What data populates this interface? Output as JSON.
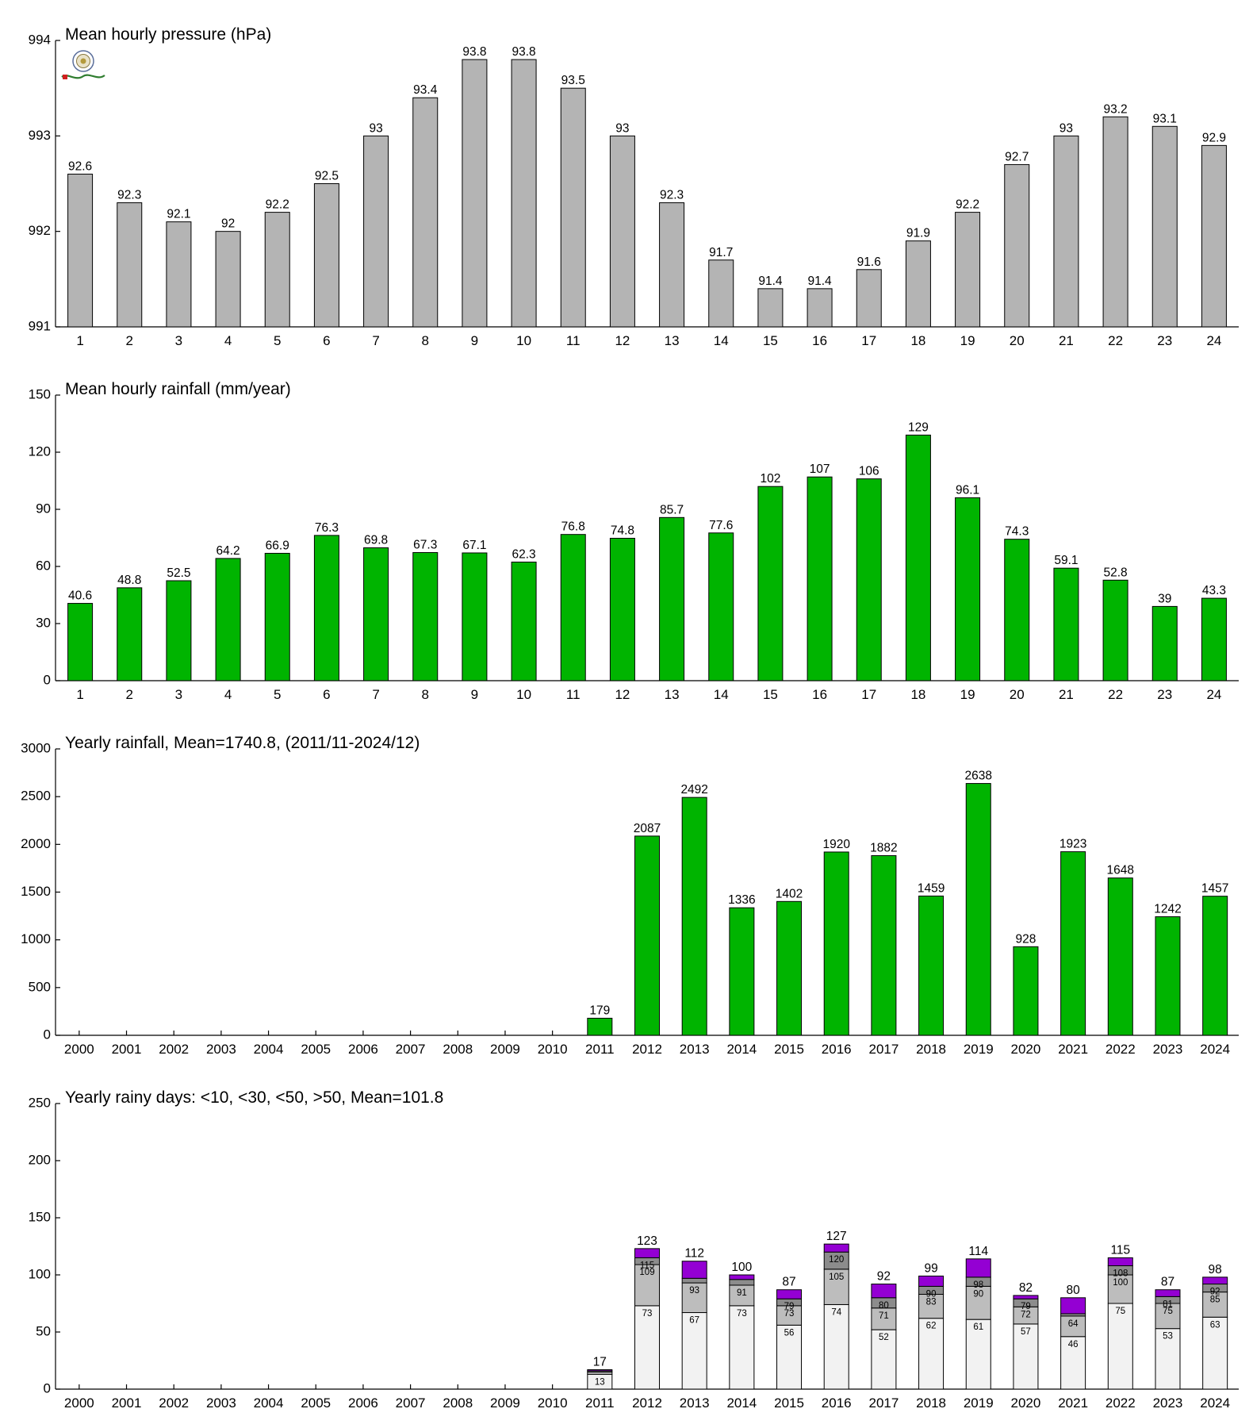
{
  "chart_data": [
    {
      "type": "bar",
      "title": "Mean hourly pressure (hPa)",
      "categories": [
        "1",
        "2",
        "3",
        "4",
        "5",
        "6",
        "7",
        "8",
        "9",
        "10",
        "11",
        "12",
        "13",
        "14",
        "15",
        "16",
        "17",
        "18",
        "19",
        "20",
        "21",
        "22",
        "23",
        "24"
      ],
      "values": [
        992.6,
        992.3,
        992.1,
        992.0,
        992.2,
        992.5,
        993.0,
        993.4,
        993.8,
        993.8,
        993.5,
        993.0,
        992.3,
        991.7,
        991.4,
        991.4,
        991.6,
        991.9,
        992.2,
        992.7,
        993.0,
        993.2,
        993.1,
        992.9
      ],
      "data_labels": [
        "92.6",
        "92.3",
        "92.1",
        "92",
        "92.2",
        "92.5",
        "93",
        "93.4",
        "93.8",
        "93.8",
        "93.5",
        "93",
        "92.3",
        "91.7",
        "91.4",
        "91.4",
        "91.6",
        "91.9",
        "92.2",
        "92.7",
        "93",
        "93.2",
        "93.1",
        "92.9"
      ],
      "ylim": [
        991,
        994
      ],
      "yticks": [
        991,
        992,
        993,
        994
      ],
      "color": "#b4b4b4"
    },
    {
      "type": "bar",
      "title": "Mean hourly rainfall (mm/year)",
      "categories": [
        "1",
        "2",
        "3",
        "4",
        "5",
        "6",
        "7",
        "8",
        "9",
        "10",
        "11",
        "12",
        "13",
        "14",
        "15",
        "16",
        "17",
        "18",
        "19",
        "20",
        "21",
        "22",
        "23",
        "24"
      ],
      "values": [
        40.6,
        48.8,
        52.5,
        64.2,
        66.9,
        76.3,
        69.8,
        67.3,
        67.1,
        62.3,
        76.8,
        74.8,
        85.7,
        77.6,
        102,
        107,
        106,
        129,
        96.1,
        74.3,
        59.1,
        52.8,
        39,
        43.3
      ],
      "data_labels": [
        "40.6",
        "48.8",
        "52.5",
        "64.2",
        "66.9",
        "76.3",
        "69.8",
        "67.3",
        "67.1",
        "62.3",
        "76.8",
        "74.8",
        "85.7",
        "77.6",
        "102",
        "107",
        "106",
        "129",
        "96.1",
        "74.3",
        "59.1",
        "52.8",
        "39",
        "43.3"
      ],
      "ylim": [
        0,
        150
      ],
      "yticks": [
        0,
        30,
        60,
        90,
        120,
        150
      ],
      "color": "#00b400"
    },
    {
      "type": "bar",
      "title": "Yearly rainfall, Mean=1740.8, (2011/11-2024/12)",
      "categories": [
        "2000",
        "2001",
        "2002",
        "2003",
        "2004",
        "2005",
        "2006",
        "2007",
        "2008",
        "2009",
        "2010",
        "2011",
        "2012",
        "2013",
        "2014",
        "2015",
        "2016",
        "2017",
        "2018",
        "2019",
        "2020",
        "2021",
        "2022",
        "2023",
        "2024"
      ],
      "values": [
        null,
        null,
        null,
        null,
        null,
        null,
        null,
        null,
        null,
        null,
        null,
        179,
        2087,
        2492,
        1336,
        1402,
        1920,
        1882,
        1459,
        2638,
        928,
        1923,
        1648,
        1242,
        1457
      ],
      "data_labels": [
        "",
        "",
        "",
        "",
        "",
        "",
        "",
        "",
        "",
        "",
        "",
        "179",
        "2087",
        "2492",
        "1336",
        "1402",
        "1920",
        "1882",
        "1459",
        "2638",
        "928",
        "1923",
        "1648",
        "1242",
        "1457"
      ],
      "ylim": [
        0,
        3000
      ],
      "yticks": [
        0,
        500,
        1000,
        1500,
        2000,
        2500,
        3000
      ],
      "color": "#00b400"
    },
    {
      "type": "bar",
      "stacked": true,
      "title": "Yearly rainy days: <10, <30, <50, >50, Mean=101.8",
      "categories": [
        "2000",
        "2001",
        "2002",
        "2003",
        "2004",
        "2005",
        "2006",
        "2007",
        "2008",
        "2009",
        "2010",
        "2011",
        "2012",
        "2013",
        "2014",
        "2015",
        "2016",
        "2017",
        "2018",
        "2019",
        "2020",
        "2021",
        "2022",
        "2023",
        "2024"
      ],
      "cumulative": {
        "lt10": [
          null,
          null,
          null,
          null,
          null,
          null,
          null,
          null,
          null,
          null,
          null,
          13,
          73,
          67,
          73,
          56,
          74,
          52,
          62,
          61,
          57,
          46,
          75,
          53,
          63
        ],
        "lt30": [
          null,
          null,
          null,
          null,
          null,
          null,
          null,
          null,
          null,
          null,
          null,
          15,
          109,
          93,
          91,
          73,
          105,
          71,
          83,
          90,
          72,
          64,
          100,
          75,
          85
        ],
        "lt50": [
          null,
          null,
          null,
          null,
          null,
          null,
          null,
          null,
          null,
          null,
          null,
          16,
          115,
          97,
          96,
          79,
          120,
          80,
          90,
          98,
          79,
          66,
          108,
          81,
          92
        ],
        "total": [
          null,
          null,
          null,
          null,
          null,
          null,
          null,
          null,
          null,
          null,
          null,
          17,
          123,
          112,
          100,
          87,
          127,
          92,
          99,
          114,
          82,
          80,
          115,
          87,
          98
        ]
      },
      "segment_labels_lt10": [
        "",
        "",
        "",
        "",
        "",
        "",
        "",
        "",
        "",
        "",
        "",
        "13",
        "73",
        "67",
        "73",
        "56",
        "74",
        "52",
        "62",
        "61",
        "57",
        "46",
        "75",
        "53",
        "63"
      ],
      "segment_labels_lt30": [
        "",
        "",
        "",
        "",
        "",
        "",
        "",
        "",
        "",
        "",
        "",
        "",
        "109",
        "93",
        "91",
        "73",
        "105",
        "71",
        "83",
        "90",
        "72",
        "64",
        "100",
        "75",
        "85"
      ],
      "segment_labels_lt50": [
        "",
        "",
        "",
        "",
        "",
        "",
        "",
        "",
        "",
        "",
        "",
        "",
        "115",
        "",
        "",
        "79",
        "120",
        "80",
        "90",
        "98",
        "79",
        "",
        "108",
        "81",
        "92"
      ],
      "total_labels": [
        "",
        "",
        "",
        "",
        "",
        "",
        "",
        "",
        "",
        "",
        "",
        "17",
        "123",
        "112",
        "100",
        "87",
        "127",
        "92",
        "99",
        "114",
        "82",
        "80",
        "115",
        "87",
        "98"
      ],
      "ylim": [
        0,
        250
      ],
      "yticks": [
        0,
        50,
        100,
        150,
        200,
        250
      ],
      "colors": {
        "lt10": "#f2f2f2",
        "lt30": "#bdbdbd",
        "lt50": "#8c8c8c",
        "gt50": "#9400d3"
      }
    }
  ]
}
